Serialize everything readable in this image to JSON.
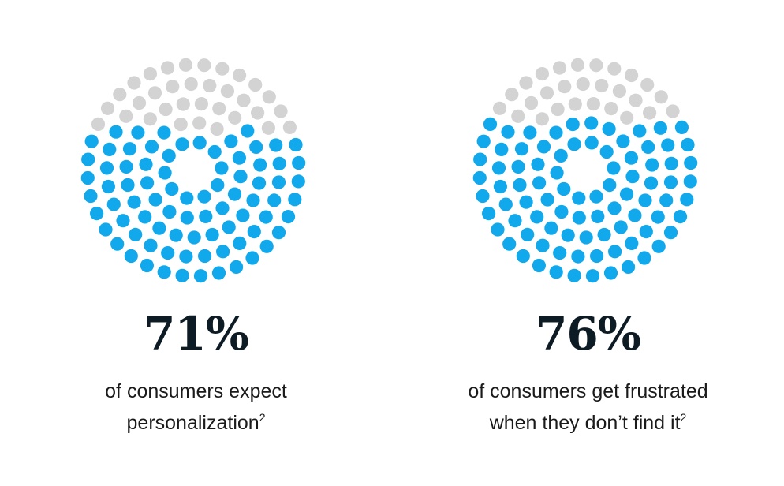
{
  "colors": {
    "filled": "#12a9ec",
    "empty": "#d3d3d3",
    "text": "#0d1b25"
  },
  "chart_data": [
    {
      "type": "dot-matrix",
      "value": 71,
      "label": "71%",
      "caption_lines": [
        "of consumers expect",
        "personalization"
      ],
      "footnote": "2"
    },
    {
      "type": "dot-matrix",
      "value": 76,
      "label": "76%",
      "caption_lines": [
        "of consumers get frustrated",
        "when they don’t find it"
      ],
      "footnote": "2"
    }
  ]
}
